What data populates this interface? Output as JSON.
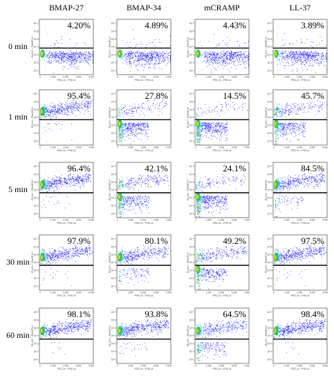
{
  "chart_data": {
    "type": "scatter",
    "columns": [
      "BMAP-27",
      "BMAP-34",
      "mCRAMP",
      "LL-37"
    ],
    "rows": [
      "0 min",
      "1 min",
      "5 min",
      "30 min",
      "60 min"
    ],
    "values": [
      [
        "4.20%",
        "4.89%",
        "4.43%",
        "3.89%"
      ],
      [
        "95.4%",
        "27.8%",
        "14.5%",
        "45.7%"
      ],
      [
        "96.4%",
        "42.1%",
        "24.1%",
        "84.5%"
      ],
      [
        "97.9%",
        "80.1%",
        "49.2%",
        "97.5%"
      ],
      [
        "98.1%",
        "93.8%",
        "64.5%",
        "98.4%"
      ]
    ],
    "xlabel": "FSC-A :: FSC-A",
    "ylabel": "FL3-H :: PerCP-H",
    "x_ticks": [
      "0",
      "1.0M",
      "2.0M",
      "3.0M",
      "4.0M"
    ],
    "y_ticks": [
      "10^1",
      "10^2",
      "10^3",
      "10^4",
      "10^5",
      "10^6",
      "10^7"
    ],
    "x_range": [
      0,
      4000000
    ],
    "y_range_log10": [
      0,
      7
    ],
    "colors": {
      "density_low": "#1c1cff",
      "density_mid": "#00c8e6",
      "density_high": "#16c050",
      "density_peak": "#ffd000",
      "gate_line": "#000000"
    }
  }
}
